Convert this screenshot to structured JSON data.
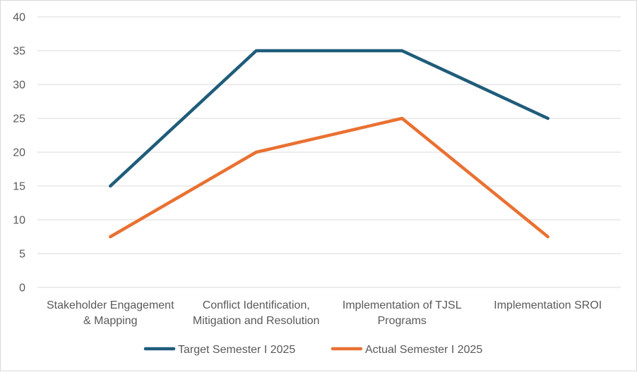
{
  "chart_data": {
    "type": "line",
    "categories": [
      [
        "Stakeholder Engagement",
        "& Mapping"
      ],
      [
        "Conflict Identification,",
        "Mitigation and Resolution"
      ],
      [
        "Implementation of TJSL",
        "Programs"
      ],
      [
        "Implementation SROI"
      ]
    ],
    "series": [
      {
        "name": "Target Semester I 2025",
        "values": [
          15,
          35,
          35,
          25
        ],
        "color": "#1f5c7a"
      },
      {
        "name": "Actual Semester I 2025",
        "values": [
          7.5,
          20,
          25,
          7.5
        ],
        "color": "#e97132"
      }
    ],
    "ylim": [
      0,
      40
    ],
    "yticks": [
      0,
      5,
      10,
      15,
      20,
      25,
      30,
      35,
      40
    ],
    "grid": true,
    "legend_position": "bottom",
    "gridline_color": "#d9d9d9"
  }
}
